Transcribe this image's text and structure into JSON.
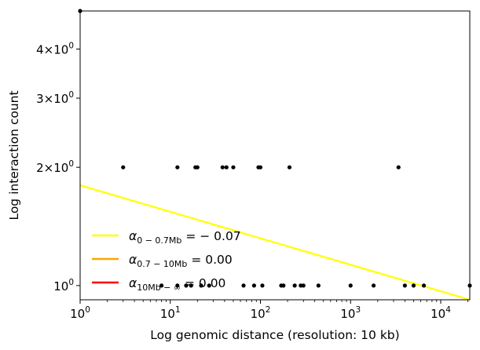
{
  "chart_data": {
    "type": "scatter",
    "title": "",
    "xlabel": "Log genomic distance (resolution: 10 kb)",
    "ylabel": "Log interaction count",
    "xscale": "log",
    "yscale": "log",
    "xlim": [
      1,
      21000
    ],
    "ylim": [
      0.92,
      5.0
    ],
    "x_ticks": [
      {
        "value": 1,
        "base": "10",
        "exp": "0"
      },
      {
        "value": 10,
        "base": "10",
        "exp": "1"
      },
      {
        "value": 100,
        "base": "10",
        "exp": "2"
      },
      {
        "value": 1000,
        "base": "10",
        "exp": "3"
      },
      {
        "value": 10000,
        "base": "10",
        "exp": "4"
      }
    ],
    "y_ticks": [
      {
        "value": 1,
        "mant": "",
        "base": "10",
        "exp": "0"
      },
      {
        "value": 2,
        "mant": "2×",
        "base": "10",
        "exp": "0"
      },
      {
        "value": 3,
        "mant": "3×",
        "base": "10",
        "exp": "0"
      },
      {
        "value": 4,
        "mant": "4×",
        "base": "10",
        "exp": "0"
      }
    ],
    "grid": false,
    "legend_position": "lower-left",
    "points": {
      "color": "#000000",
      "x": [
        3,
        12,
        19,
        20,
        38,
        42,
        50,
        95,
        100,
        210,
        3400,
        1,
        8,
        12,
        15,
        17,
        22,
        27,
        65,
        85,
        105,
        170,
        180,
        240,
        280,
        300,
        440,
        1000,
        1800,
        4000,
        5000,
        6500,
        21000
      ],
      "y": [
        2,
        2,
        2,
        2,
        2,
        2,
        2,
        2,
        2,
        2,
        2,
        5.0,
        1,
        1,
        1,
        1,
        1,
        1,
        1,
        1,
        1,
        1,
        1,
        1,
        1,
        1,
        1,
        1,
        1,
        1,
        1,
        1,
        1
      ]
    },
    "series": [
      {
        "name_main": "α",
        "name_sub": "0 − 0.7Mb",
        "value_text": " = − 0.07",
        "color": "#ffff00",
        "line": {
          "x": [
            1,
            21000
          ],
          "y": [
            1.8,
            0.92
          ]
        }
      },
      {
        "name_main": "α",
        "name_sub": "0.7 − 10Mb",
        "value_text": " = 0.00",
        "color": "#ffa500"
      },
      {
        "name_main": "α",
        "name_sub": "10Mb − ∞",
        "value_text": " = 0.00",
        "color": "#ff0000"
      }
    ]
  }
}
